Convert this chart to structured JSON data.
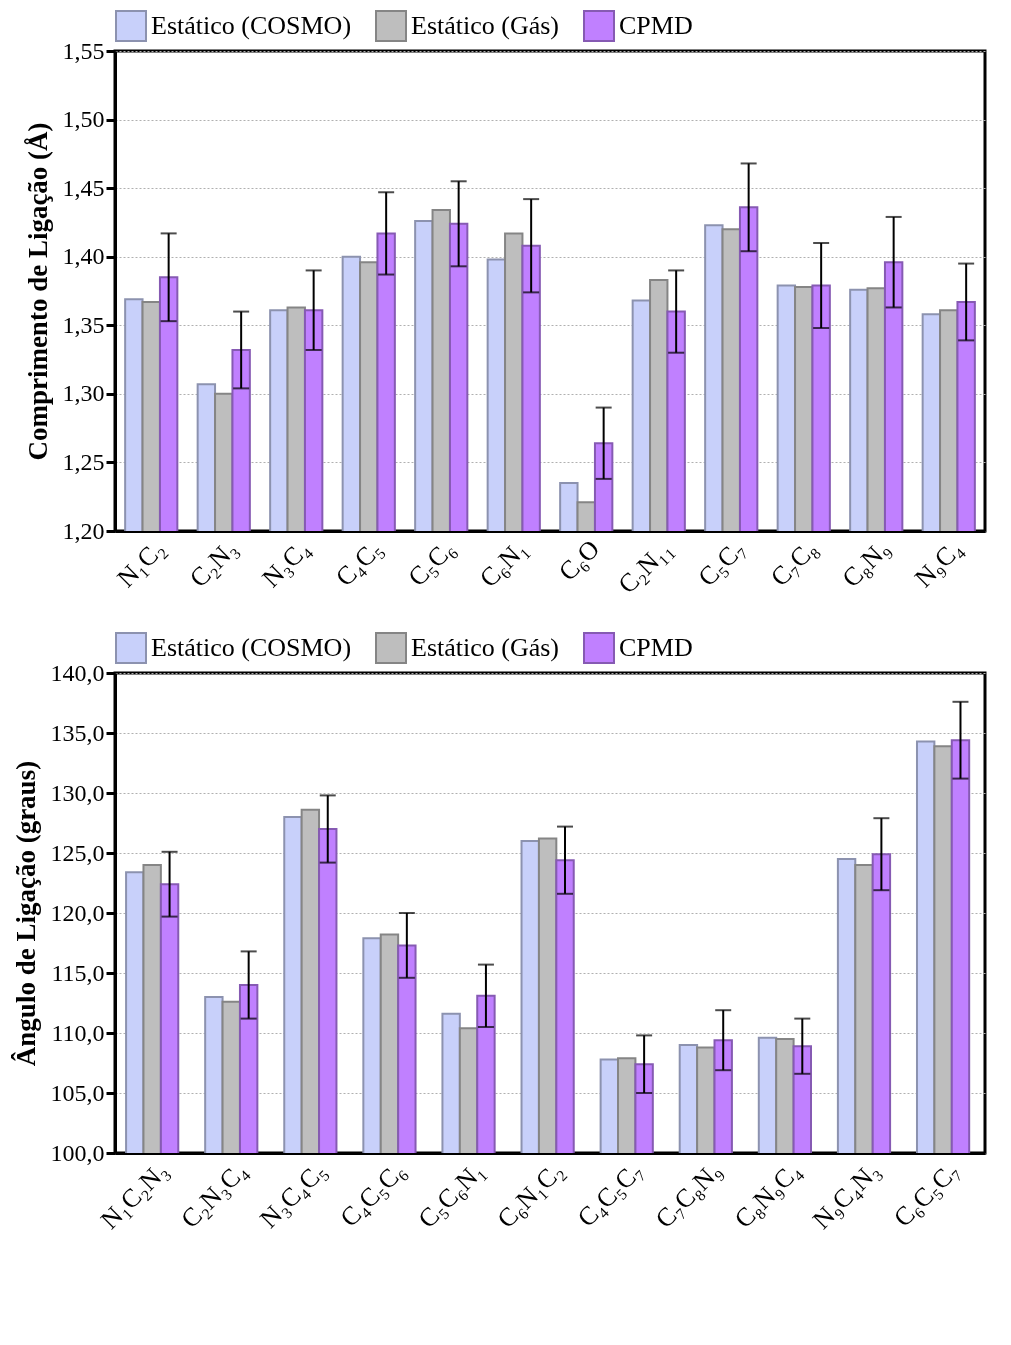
{
  "chart_data": [
    {
      "type": "bar",
      "ylabel": "Comprimento de Ligação (Å)",
      "categories": [
        "N₁C₂",
        "C₂N₃",
        "N₃C₄",
        "C₄C₅",
        "C₅C₆",
        "C₆N₁",
        "C₆O",
        "C₂N₁₁",
        "C₅C₇",
        "C₇C₈",
        "C₈N₉",
        "N₉C₄"
      ],
      "series": [
        {
          "name": "Estático (COSMO)",
          "color": "#c8d0fa",
          "values": [
            1.369,
            1.307,
            1.361,
            1.4,
            1.426,
            1.398,
            1.235,
            1.368,
            1.423,
            1.379,
            1.376,
            1.358
          ]
        },
        {
          "name": "Estático (Gás)",
          "color": "#bebebe",
          "values": [
            1.367,
            1.3,
            1.363,
            1.396,
            1.434,
            1.417,
            1.221,
            1.383,
            1.42,
            1.378,
            1.377,
            1.361
          ]
        },
        {
          "name": "CPMD",
          "color": "#c080ff",
          "values": [
            1.385,
            1.332,
            1.361,
            1.417,
            1.424,
            1.408,
            1.264,
            1.36,
            1.436,
            1.379,
            1.396,
            1.367
          ],
          "errors": [
            0.032,
            0.028,
            0.029,
            0.03,
            0.031,
            0.034,
            0.026,
            0.03,
            0.032,
            0.031,
            0.033,
            0.028
          ]
        }
      ],
      "ylim": [
        1.2,
        1.55
      ],
      "yticks": [
        {
          "value": 1.2,
          "label": "1,20"
        },
        {
          "value": 1.25,
          "label": "1,25"
        },
        {
          "value": 1.3,
          "label": "1,30"
        },
        {
          "value": 1.35,
          "label": "1,35"
        },
        {
          "value": 1.4,
          "label": "1,40"
        },
        {
          "value": 1.45,
          "label": "1,45"
        },
        {
          "value": 1.5,
          "label": "1,50"
        },
        {
          "value": 1.55,
          "label": "1,55"
        }
      ],
      "grid": "y",
      "legend": "top"
    },
    {
      "type": "bar",
      "ylabel": "Ângulo de Ligação (graus)",
      "categories": [
        "N₁C₂N₃",
        "C₂N₃C₄",
        "N₃C₄C₅",
        "C₄C₅C₆",
        "C₅C₆N₁",
        "C₆N₁C₂",
        "C₄C₅C₇",
        "C₇C₈N₉",
        "C₈N₉C₄",
        "N₉C₄N₃",
        "C₆C₅C₇"
      ],
      "series": [
        {
          "name": "Estático (COSMO)",
          "color": "#c8d0fa",
          "values": [
            123.4,
            113.0,
            128.0,
            117.9,
            111.6,
            126.0,
            107.8,
            109.0,
            109.6,
            124.5,
            134.3
          ]
        },
        {
          "name": "Estático (Gás)",
          "color": "#bebebe",
          "values": [
            124.0,
            112.6,
            128.6,
            118.2,
            110.4,
            126.2,
            107.9,
            108.8,
            109.5,
            124.0,
            133.9
          ]
        },
        {
          "name": "CPMD",
          "color": "#c080ff",
          "values": [
            122.4,
            114.0,
            127.0,
            117.3,
            113.1,
            124.4,
            107.4,
            109.4,
            108.9,
            124.9,
            134.4
          ],
          "errors": [
            2.7,
            2.8,
            2.8,
            2.7,
            2.6,
            2.8,
            2.4,
            2.5,
            2.3,
            3.0,
            3.2
          ]
        }
      ],
      "ylim": [
        100,
        140
      ],
      "yticks": [
        {
          "value": 100,
          "label": "100,0"
        },
        {
          "value": 105,
          "label": "105,0"
        },
        {
          "value": 110,
          "label": "110,0"
        },
        {
          "value": 115,
          "label": "115,0"
        },
        {
          "value": 120,
          "label": "120,0"
        },
        {
          "value": 125,
          "label": "125,0"
        },
        {
          "value": 130,
          "label": "130,0"
        },
        {
          "value": 135,
          "label": "135,0"
        },
        {
          "value": 140,
          "label": "140,0"
        }
      ],
      "grid": "y",
      "legend": "top"
    }
  ]
}
